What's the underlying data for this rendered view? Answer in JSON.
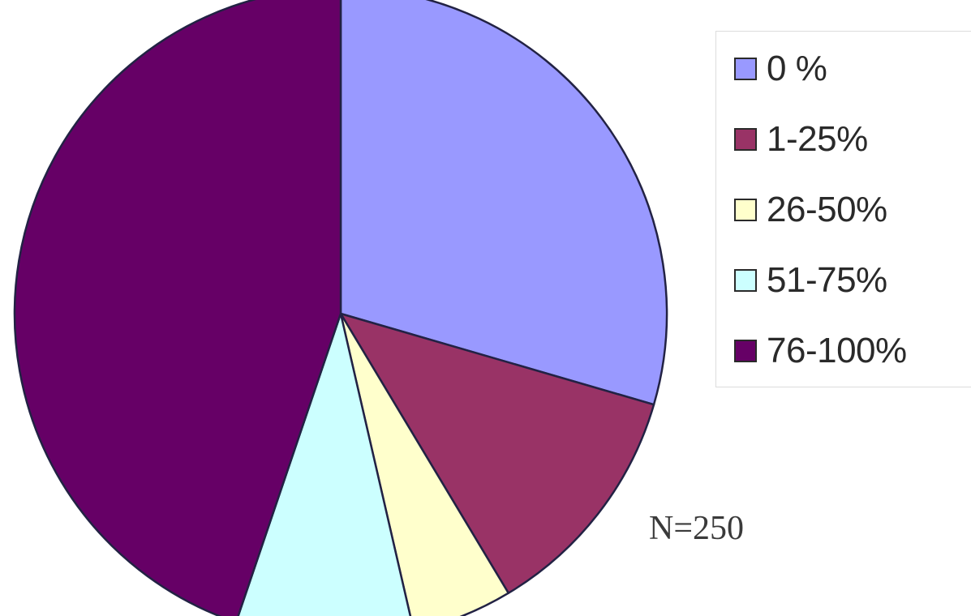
{
  "chart_data": {
    "type": "pie",
    "title": "",
    "sample_note": "N=250",
    "slices": [
      {
        "label": "0 %",
        "value": 29.5,
        "color": "#9999ff"
      },
      {
        "label": "1-25%",
        "value": 11.9,
        "color": "#993366"
      },
      {
        "label": "26-50%",
        "value": 5.0,
        "color": "#ffffcc"
      },
      {
        "label": "51-75%",
        "value": 8.8,
        "color": "#ccffff"
      },
      {
        "label": "76-100%",
        "value": 44.8,
        "color": "#660066"
      }
    ],
    "legend": "right",
    "start": "top-clockwise"
  }
}
